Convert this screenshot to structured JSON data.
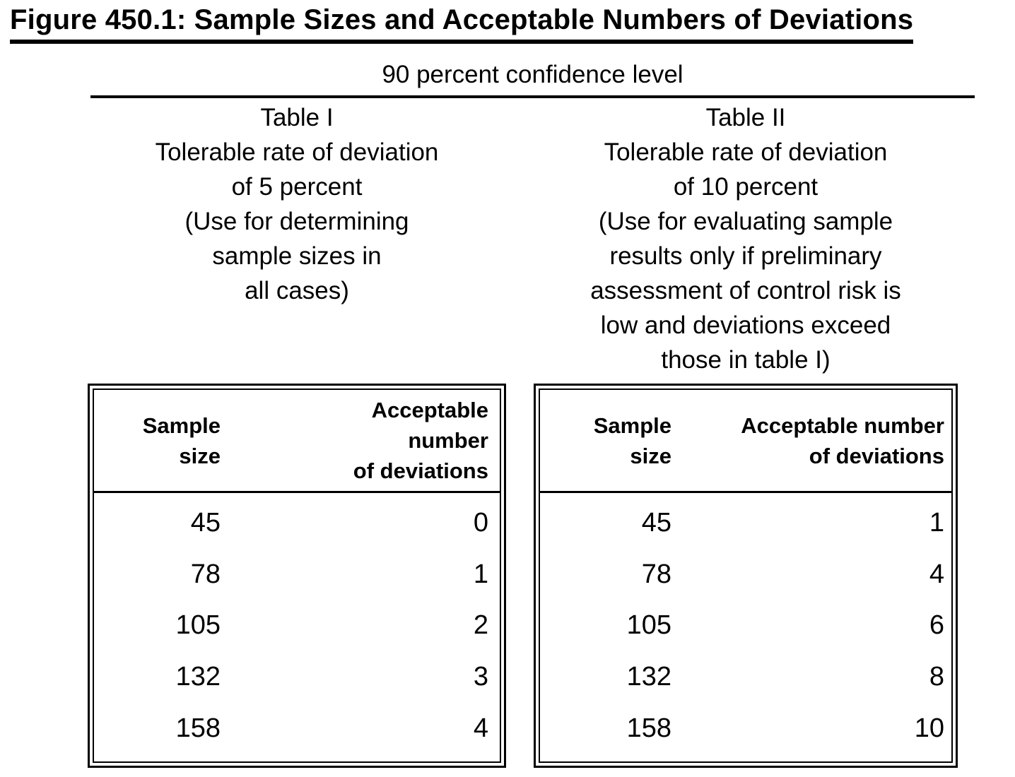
{
  "page": {
    "title": "Figure 450.1: Sample Sizes and Acceptable Numbers of Deviations",
    "confidence_level": "90 percent confidence level"
  },
  "colors": {
    "text": "#000000",
    "background": "#ffffff"
  },
  "left_panel": {
    "heading_lines": [
      "Table I",
      "Tolerable rate of deviation",
      "of 5 percent",
      "(Use for determining",
      "sample sizes in",
      "all cases)"
    ],
    "table": {
      "col1_header_lines": [
        "Sample",
        "size"
      ],
      "col2_header_lines": [
        "Acceptable",
        "number",
        "of deviations"
      ],
      "rows": [
        {
          "sample_size": "45",
          "deviations": "0"
        },
        {
          "sample_size": "78",
          "deviations": "1"
        },
        {
          "sample_size": "105",
          "deviations": "2"
        },
        {
          "sample_size": "132",
          "deviations": "3"
        },
        {
          "sample_size": "158",
          "deviations": "4"
        }
      ]
    }
  },
  "right_panel": {
    "heading_lines": [
      "Table II",
      "Tolerable rate of deviation",
      "of 10 percent",
      "(Use for evaluating sample",
      "results only if preliminary",
      "assessment of control risk is",
      "low and deviations exceed",
      "those in table I)"
    ],
    "table": {
      "col1_header_lines": [
        "Sample",
        "size"
      ],
      "col2_header_lines": [
        "Acceptable number",
        "of deviations"
      ],
      "rows": [
        {
          "sample_size": "45",
          "deviations": "1"
        },
        {
          "sample_size": "78",
          "deviations": "4"
        },
        {
          "sample_size": "105",
          "deviations": "6"
        },
        {
          "sample_size": "132",
          "deviations": "8"
        },
        {
          "sample_size": "158",
          "deviations": "10"
        }
      ]
    }
  }
}
